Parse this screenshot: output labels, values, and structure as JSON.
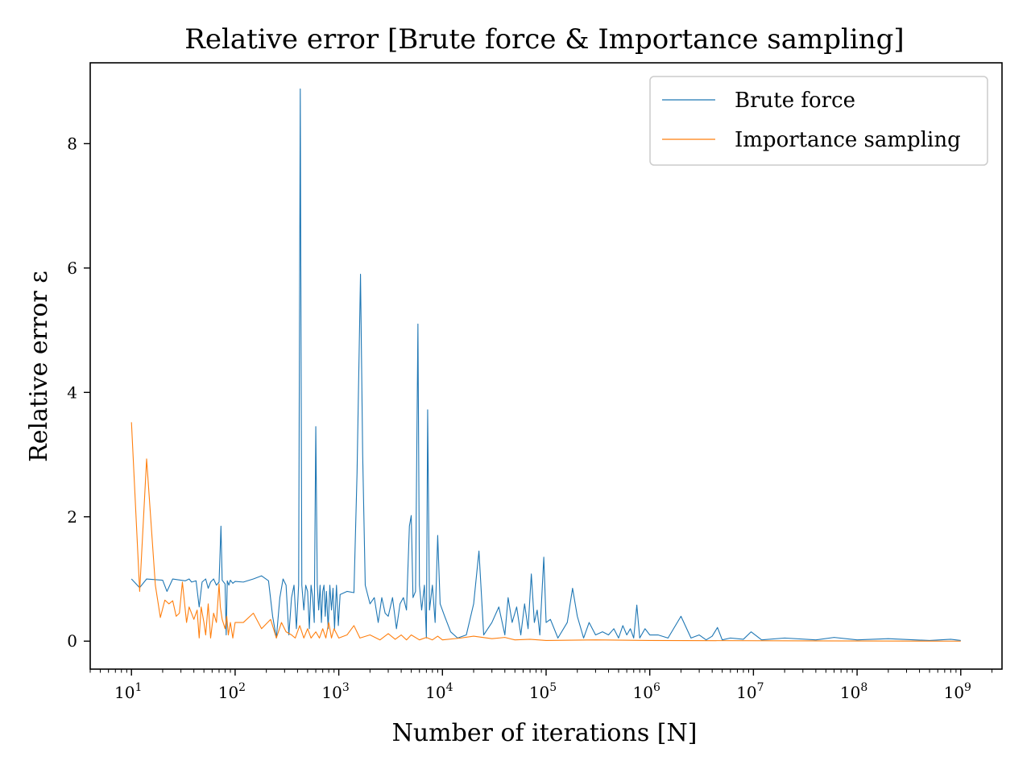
{
  "chart_data": {
    "type": "line",
    "title": "Relative error [Brute force & Importance sampling]",
    "xlabel": "Number of iterations [N]",
    "ylabel": "Relative error ε",
    "xscale": "log",
    "xlim": [
      4,
      2500000000.0
    ],
    "ylim": [
      -0.45,
      9.3
    ],
    "x_ticks": [
      {
        "base": "10",
        "exp": "1"
      },
      {
        "base": "10",
        "exp": "2"
      },
      {
        "base": "10",
        "exp": "3"
      },
      {
        "base": "10",
        "exp": "4"
      },
      {
        "base": "10",
        "exp": "5"
      },
      {
        "base": "10",
        "exp": "6"
      },
      {
        "base": "10",
        "exp": "7"
      },
      {
        "base": "10",
        "exp": "8"
      },
      {
        "base": "10",
        "exp": "9"
      }
    ],
    "y_ticks": [
      "0",
      "2",
      "4",
      "6",
      "8"
    ],
    "grid": false,
    "legend": "top-right",
    "series": [
      {
        "name": "Brute force",
        "color": "#1f77b4",
        "points": [
          [
            10,
            1.0
          ],
          [
            12,
            0.86
          ],
          [
            14,
            1.0
          ],
          [
            20,
            0.98
          ],
          [
            22,
            0.8
          ],
          [
            25,
            1.0
          ],
          [
            30,
            0.98
          ],
          [
            33,
            0.97
          ],
          [
            36,
            1.0
          ],
          [
            38,
            0.95
          ],
          [
            42,
            0.97
          ],
          [
            45,
            0.55
          ],
          [
            48,
            0.95
          ],
          [
            52,
            1.0
          ],
          [
            55,
            0.85
          ],
          [
            58,
            0.95
          ],
          [
            62,
            1.0
          ],
          [
            66,
            0.9
          ],
          [
            70,
            0.95
          ],
          [
            73,
            1.85
          ],
          [
            75,
            0.98
          ],
          [
            80,
            0.92
          ],
          [
            82,
            0.1
          ],
          [
            84,
            0.97
          ],
          [
            87,
            0.9
          ],
          [
            90,
            0.98
          ],
          [
            95,
            0.93
          ],
          [
            100,
            0.96
          ],
          [
            120,
            0.95
          ],
          [
            150,
            1.0
          ],
          [
            180,
            1.05
          ],
          [
            210,
            0.97
          ],
          [
            230,
            0.4
          ],
          [
            250,
            0.05
          ],
          [
            270,
            0.7
          ],
          [
            290,
            1.0
          ],
          [
            310,
            0.9
          ],
          [
            330,
            0.1
          ],
          [
            350,
            0.7
          ],
          [
            370,
            0.9
          ],
          [
            390,
            0.2
          ],
          [
            410,
            0.9
          ],
          [
            425,
            8.88
          ],
          [
            440,
            0.9
          ],
          [
            460,
            0.5
          ],
          [
            480,
            0.9
          ],
          [
            500,
            0.8
          ],
          [
            520,
            0.2
          ],
          [
            540,
            0.9
          ],
          [
            560,
            0.7
          ],
          [
            580,
            0.3
          ],
          [
            600,
            3.45
          ],
          [
            620,
            0.9
          ],
          [
            640,
            0.5
          ],
          [
            660,
            0.9
          ],
          [
            680,
            0.3
          ],
          [
            700,
            0.8
          ],
          [
            720,
            0.9
          ],
          [
            740,
            0.4
          ],
          [
            760,
            0.8
          ],
          [
            790,
            0.2
          ],
          [
            820,
            0.9
          ],
          [
            850,
            0.5
          ],
          [
            880,
            0.85
          ],
          [
            910,
            0.2
          ],
          [
            950,
            0.9
          ],
          [
            990,
            0.25
          ],
          [
            1030,
            0.75
          ],
          [
            1200,
            0.8
          ],
          [
            1400,
            0.78
          ],
          [
            1500,
            2.7
          ],
          [
            1620,
            5.9
          ],
          [
            1700,
            3.0
          ],
          [
            1800,
            0.9
          ],
          [
            2000,
            0.6
          ],
          [
            2200,
            0.7
          ],
          [
            2400,
            0.3
          ],
          [
            2600,
            0.7
          ],
          [
            2800,
            0.45
          ],
          [
            3000,
            0.4
          ],
          [
            3300,
            0.7
          ],
          [
            3600,
            0.2
          ],
          [
            3900,
            0.6
          ],
          [
            4200,
            0.7
          ],
          [
            4500,
            0.5
          ],
          [
            4800,
            1.85
          ],
          [
            5000,
            2.02
          ],
          [
            5200,
            0.7
          ],
          [
            5500,
            0.8
          ],
          [
            5800,
            5.1
          ],
          [
            6000,
            0.9
          ],
          [
            6300,
            0.5
          ],
          [
            6700,
            0.9
          ],
          [
            7000,
            0.05
          ],
          [
            7200,
            3.72
          ],
          [
            7500,
            0.5
          ],
          [
            8000,
            0.9
          ],
          [
            8500,
            0.3
          ],
          [
            9000,
            1.7
          ],
          [
            9500,
            0.6
          ],
          [
            10500,
            0.4
          ],
          [
            12000,
            0.15
          ],
          [
            14000,
            0.05
          ],
          [
            17000,
            0.1
          ],
          [
            20000,
            0.6
          ],
          [
            22500,
            1.45
          ],
          [
            25000,
            0.1
          ],
          [
            30000,
            0.3
          ],
          [
            35000,
            0.55
          ],
          [
            40000,
            0.1
          ],
          [
            43000,
            0.7
          ],
          [
            47000,
            0.3
          ],
          [
            52000,
            0.55
          ],
          [
            57000,
            0.1
          ],
          [
            62000,
            0.6
          ],
          [
            67000,
            0.2
          ],
          [
            72000,
            1.08
          ],
          [
            77000,
            0.3
          ],
          [
            82000,
            0.5
          ],
          [
            87000,
            0.1
          ],
          [
            95000,
            1.35
          ],
          [
            100000,
            0.3
          ],
          [
            110000,
            0.35
          ],
          [
            130000,
            0.05
          ],
          [
            160000,
            0.3
          ],
          [
            180000,
            0.85
          ],
          [
            200000,
            0.4
          ],
          [
            230000,
            0.05
          ],
          [
            260000,
            0.3
          ],
          [
            300000,
            0.1
          ],
          [
            350000,
            0.15
          ],
          [
            400000,
            0.1
          ],
          [
            450000,
            0.2
          ],
          [
            500000,
            0.05
          ],
          [
            550000,
            0.25
          ],
          [
            600000,
            0.1
          ],
          [
            650000,
            0.2
          ],
          [
            700000,
            0.05
          ],
          [
            750000,
            0.58
          ],
          [
            800000,
            0.05
          ],
          [
            900000,
            0.2
          ],
          [
            1000000,
            0.1
          ],
          [
            1200000,
            0.1
          ],
          [
            1500000,
            0.05
          ],
          [
            2000000,
            0.4
          ],
          [
            2500000,
            0.05
          ],
          [
            3000000,
            0.1
          ],
          [
            3500000,
            0.02
          ],
          [
            4000000,
            0.08
          ],
          [
            4500000,
            0.22
          ],
          [
            5000000,
            0.02
          ],
          [
            6000000,
            0.05
          ],
          [
            8000000,
            0.03
          ],
          [
            9500000,
            0.15
          ],
          [
            12000000,
            0.02
          ],
          [
            20000000,
            0.05
          ],
          [
            40000000,
            0.02
          ],
          [
            60000000,
            0.06
          ],
          [
            100000000,
            0.02
          ],
          [
            200000000,
            0.04
          ],
          [
            500000000,
            0.01
          ],
          [
            800000000,
            0.03
          ],
          [
            1000000000,
            0.01
          ]
        ]
      },
      {
        "name": "Importance sampling",
        "color": "#ff7f0e",
        "points": [
          [
            10,
            3.52
          ],
          [
            12,
            0.8
          ],
          [
            14,
            2.93
          ],
          [
            17,
            0.9
          ],
          [
            19,
            0.38
          ],
          [
            21,
            0.66
          ],
          [
            23,
            0.6
          ],
          [
            25,
            0.65
          ],
          [
            27,
            0.4
          ],
          [
            29,
            0.45
          ],
          [
            31,
            0.95
          ],
          [
            34,
            0.3
          ],
          [
            36,
            0.55
          ],
          [
            40,
            0.35
          ],
          [
            43,
            0.5
          ],
          [
            45,
            0.05
          ],
          [
            47,
            0.55
          ],
          [
            50,
            0.3
          ],
          [
            52,
            0.1
          ],
          [
            55,
            0.6
          ],
          [
            58,
            0.05
          ],
          [
            62,
            0.45
          ],
          [
            66,
            0.3
          ],
          [
            70,
            0.92
          ],
          [
            72,
            0.55
          ],
          [
            75,
            0.35
          ],
          [
            80,
            0.2
          ],
          [
            83,
            0.4
          ],
          [
            86,
            0.1
          ],
          [
            90,
            0.3
          ],
          [
            95,
            0.05
          ],
          [
            100,
            0.3
          ],
          [
            120,
            0.3
          ],
          [
            150,
            0.45
          ],
          [
            180,
            0.2
          ],
          [
            220,
            0.35
          ],
          [
            250,
            0.05
          ],
          [
            280,
            0.3
          ],
          [
            310,
            0.15
          ],
          [
            350,
            0.1
          ],
          [
            380,
            0.05
          ],
          [
            420,
            0.25
          ],
          [
            460,
            0.05
          ],
          [
            500,
            0.2
          ],
          [
            540,
            0.05
          ],
          [
            600,
            0.15
          ],
          [
            650,
            0.05
          ],
          [
            700,
            0.2
          ],
          [
            750,
            0.05
          ],
          [
            800,
            0.3
          ],
          [
            850,
            0.05
          ],
          [
            900,
            0.2
          ],
          [
            1000,
            0.05
          ],
          [
            1200,
            0.1
          ],
          [
            1400,
            0.25
          ],
          [
            1600,
            0.05
          ],
          [
            2000,
            0.1
          ],
          [
            2500,
            0.02
          ],
          [
            3000,
            0.12
          ],
          [
            3500,
            0.03
          ],
          [
            4000,
            0.1
          ],
          [
            4500,
            0.02
          ],
          [
            5000,
            0.1
          ],
          [
            6000,
            0.02
          ],
          [
            7000,
            0.06
          ],
          [
            8000,
            0.02
          ],
          [
            9000,
            0.08
          ],
          [
            10000,
            0.02
          ],
          [
            15000,
            0.05
          ],
          [
            20000,
            0.08
          ],
          [
            30000,
            0.04
          ],
          [
            40000,
            0.06
          ],
          [
            50000,
            0.02
          ],
          [
            70000,
            0.03
          ],
          [
            100000,
            0.01
          ],
          [
            300000,
            0.02
          ],
          [
            1000000,
            0.01
          ],
          [
            1000000000,
            0.0
          ]
        ]
      }
    ]
  }
}
